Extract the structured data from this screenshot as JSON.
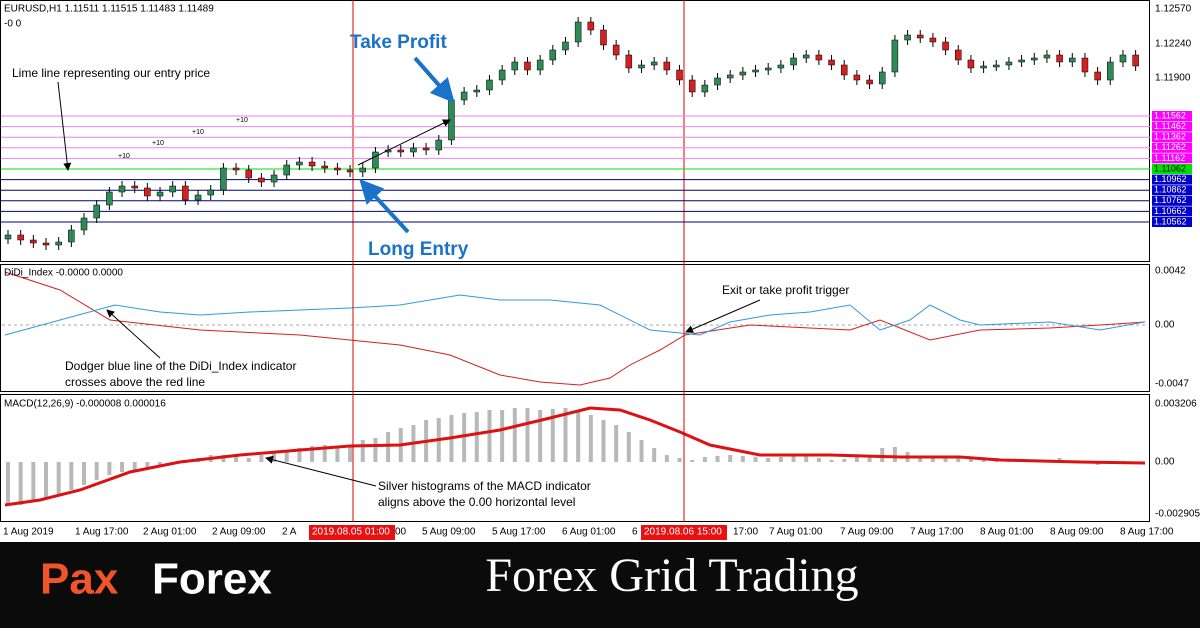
{
  "header": {
    "symbol": "EURUSD,H1  1.11511 1.11515 1.11483 1.11489",
    "sub": "-0   0"
  },
  "price_axis": [
    "1.12570",
    "1.12240",
    "1.11900"
  ],
  "levels": [
    {
      "label": "1.11562",
      "color": "#ff00ff"
    },
    {
      "label": "1.11462",
      "color": "#ff00ff"
    },
    {
      "label": "1.11362",
      "color": "#ff00ff"
    },
    {
      "label": "1.11262",
      "color": "#ff00ff"
    },
    {
      "label": "1.11162",
      "color": "#ff00ff"
    },
    {
      "label": "1.11062",
      "color": "#00e000"
    },
    {
      "label": "1.10962",
      "color": "#0000cc"
    },
    {
      "label": "1.10862",
      "color": "#0000cc"
    },
    {
      "label": "1.10762",
      "color": "#0000cc"
    },
    {
      "label": "1.10662",
      "color": "#0000cc"
    },
    {
      "label": "1.10562",
      "color": "#0000cc"
    }
  ],
  "level_steps": [
    "+10",
    "+10",
    "+10",
    "+10"
  ],
  "annotations": {
    "entry_line": "Lime line representing our entry price",
    "take_profit": "Take Profit",
    "long_entry": "Long Entry",
    "exit": "Exit or take profit trigger",
    "didi_1": "Dodger blue line of the DiDi_Index indicator",
    "didi_2": "crosses above the red line",
    "macd_1": "Silver histograms of the MACD indicator",
    "macd_2": "aligns above the 0.00 horizontal level"
  },
  "didi": {
    "title": "DiDi_Index -0.0000 0.0000",
    "ticks": [
      "0.0042",
      "0.00",
      "-0.0047"
    ]
  },
  "macd": {
    "title": "MACD(12,26,9) -0.000008 0.000016",
    "ticks": [
      "0.003206",
      "0.00",
      "-0.002905"
    ]
  },
  "time_axis": [
    "1 Aug 2019",
    "1 Aug 17:00",
    "2 Aug 01:00",
    "2 Aug 09:00",
    "2 A",
    "00",
    "5 Aug 09:00",
    "5 Aug 17:00",
    "6 Aug 01:00",
    "6",
    "17:00",
    "7 Aug 01:00",
    "7 Aug 09:00",
    "7 Aug 17:00",
    "8 Aug 01:00",
    "8 Aug 09:00",
    "8 Aug 17:00"
  ],
  "time_markers": [
    "2019.08.05 01:00",
    "2019.08.06 15:00"
  ],
  "brand": {
    "logo_a": "Pax",
    "logo_b": "Forex",
    "title": "Forex Grid Trading"
  }
}
